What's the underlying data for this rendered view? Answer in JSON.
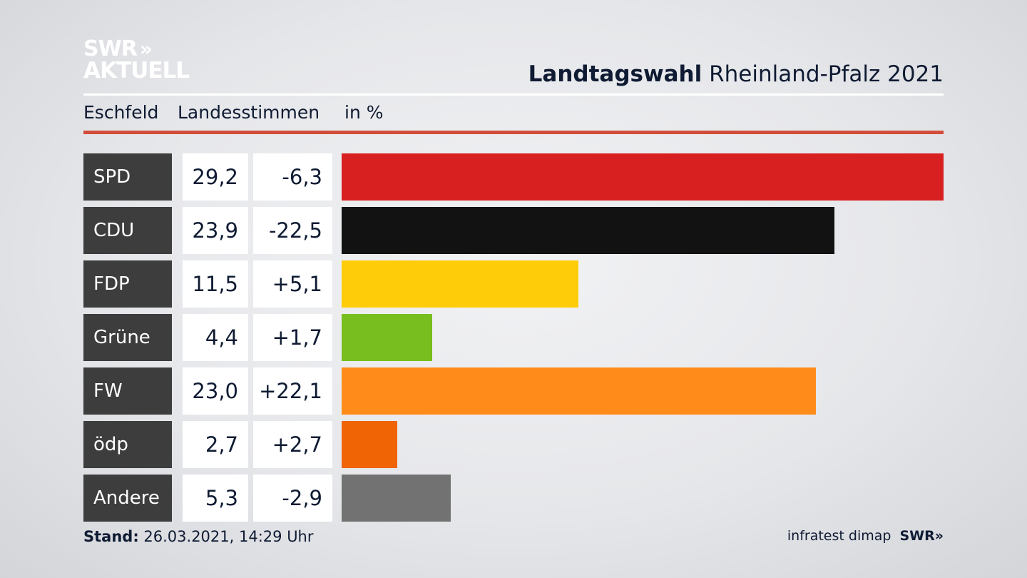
{
  "logo": {
    "line1": "SWR",
    "chevrons": "»",
    "line2": "AKTUELL"
  },
  "header": {
    "title_bold": "Landtagswahl",
    "title_rest": "Rheinland-Pfalz 2021"
  },
  "subheader": {
    "district": "Eschfeld",
    "vote_type": "Landesstimmen",
    "unit": "in %"
  },
  "chart_data": {
    "type": "bar",
    "orientation": "horizontal",
    "categories": [
      "SPD",
      "CDU",
      "FDP",
      "Grüne",
      "FW",
      "ödp",
      "Andere"
    ],
    "values": [
      29.2,
      23.9,
      11.5,
      4.4,
      23.0,
      2.7,
      5.3
    ],
    "value_labels": [
      "29,2",
      "23,9",
      "11,5",
      "4,4",
      "23,0",
      "2,7",
      "5,3"
    ],
    "changes": [
      -6.3,
      -22.5,
      5.1,
      1.7,
      22.1,
      2.7,
      -2.9
    ],
    "change_labels": [
      "-6,3",
      "-22,5",
      "+5,1",
      "+1,7",
      "+22,1",
      "+2,7",
      "-2,9"
    ],
    "colors": [
      "#d82020",
      "#121212",
      "#ffcc0a",
      "#78be1e",
      "#ff8c1a",
      "#f06405",
      "#727272"
    ],
    "xlim": [
      0,
      29.2
    ],
    "grid": false
  },
  "footer": {
    "stand_label": "Stand:",
    "stand_value": "26.03.2021, 14:29 Uhr"
  },
  "credit": {
    "source": "infratest dimap",
    "brand": "SWR",
    "chevrons": "»"
  }
}
